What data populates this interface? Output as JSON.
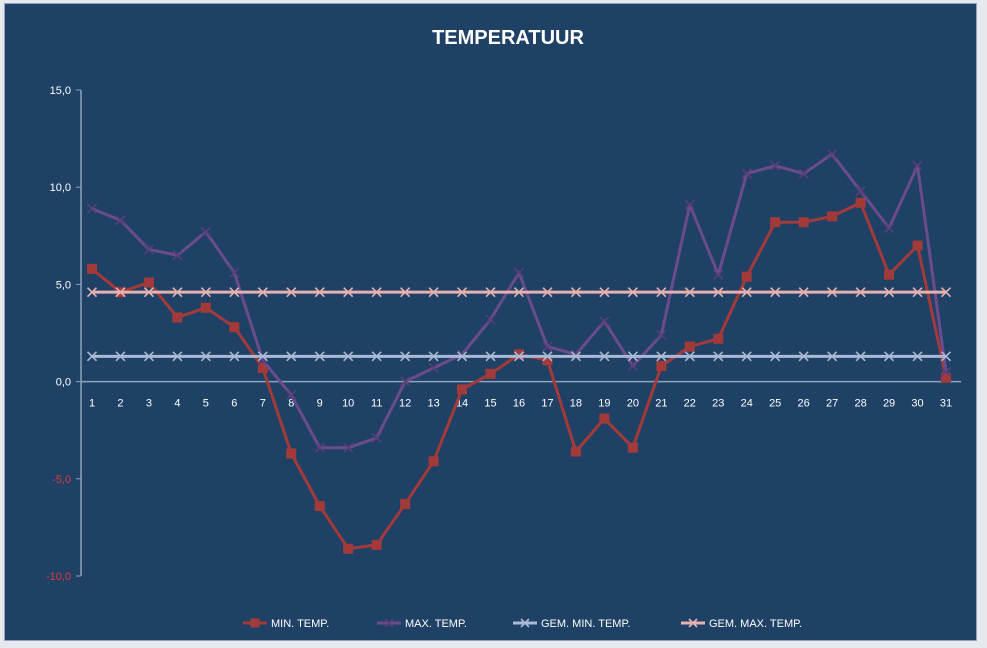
{
  "chart_data": {
    "type": "line",
    "title": "TEMPERATUUR",
    "xlabel": "",
    "ylabel": "",
    "ylim": [
      -10,
      15
    ],
    "y_ticks": [
      "15,0",
      "10,0",
      "5,0",
      "0,0",
      "-5,0",
      "-10,0"
    ],
    "y_tick_values": [
      15,
      10,
      5,
      0,
      -5,
      -10
    ],
    "negative_tick_color": "#e03a3a",
    "grid": false,
    "legend_position": "bottom",
    "categories": [
      "1",
      "2",
      "3",
      "4",
      "5",
      "6",
      "7",
      "8",
      "9",
      "10",
      "11",
      "12",
      "13",
      "14",
      "15",
      "16",
      "17",
      "18",
      "19",
      "20",
      "21",
      "22",
      "23",
      "24",
      "25",
      "26",
      "27",
      "28",
      "29",
      "30",
      "31"
    ],
    "series": [
      {
        "name": "MIN. TEMP.",
        "color": "#a33a3a",
        "marker": "square",
        "values": [
          5.8,
          4.6,
          5.1,
          3.3,
          3.8,
          2.8,
          0.7,
          -3.7,
          -6.4,
          -8.6,
          -8.4,
          -6.3,
          -4.1,
          -0.4,
          0.4,
          1.4,
          1.1,
          -3.6,
          -1.9,
          -3.4,
          0.8,
          1.8,
          2.2,
          5.4,
          8.2,
          8.2,
          8.5,
          9.2,
          5.5,
          7.0,
          0.2
        ]
      },
      {
        "name": "MAX. TEMP.",
        "color": "#6a4b8c",
        "marker": "x",
        "values": [
          8.9,
          8.3,
          6.8,
          6.5,
          7.7,
          5.6,
          1.1,
          -0.7,
          -3.4,
          -3.4,
          -2.9,
          0.0,
          0.7,
          1.4,
          3.2,
          5.6,
          1.8,
          1.4,
          3.1,
          0.8,
          2.4,
          9.1,
          5.5,
          10.7,
          11.1,
          10.7,
          11.7,
          9.8,
          7.9,
          11.1,
          0.5
        ]
      },
      {
        "name": "GEM. MIN. TEMP.",
        "color": "#a9b9d6",
        "marker": "x",
        "values": [
          1.3,
          1.3,
          1.3,
          1.3,
          1.3,
          1.3,
          1.3,
          1.3,
          1.3,
          1.3,
          1.3,
          1.3,
          1.3,
          1.3,
          1.3,
          1.3,
          1.3,
          1.3,
          1.3,
          1.3,
          1.3,
          1.3,
          1.3,
          1.3,
          1.3,
          1.3,
          1.3,
          1.3,
          1.3,
          1.3,
          1.3
        ]
      },
      {
        "name": "GEM. MAX. TEMP.",
        "color": "#e5b2b2",
        "marker": "x",
        "values": [
          4.6,
          4.6,
          4.6,
          4.6,
          4.6,
          4.6,
          4.6,
          4.6,
          4.6,
          4.6,
          4.6,
          4.6,
          4.6,
          4.6,
          4.6,
          4.6,
          4.6,
          4.6,
          4.6,
          4.6,
          4.6,
          4.6,
          4.6,
          4.6,
          4.6,
          4.6,
          4.6,
          4.6,
          4.6,
          4.6,
          4.6
        ]
      }
    ],
    "colors": {
      "background": "#1f4166",
      "axis": "#8fa3bb",
      "text": "#ffffff"
    }
  }
}
